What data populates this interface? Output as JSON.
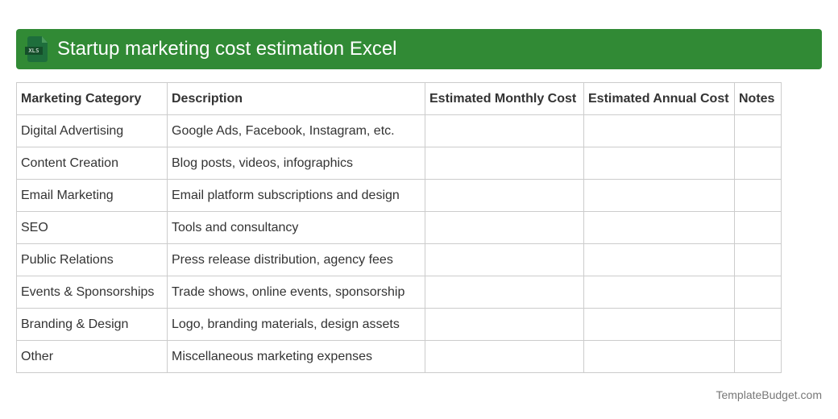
{
  "header": {
    "icon": "xls-file-icon",
    "icon_label": "XLS",
    "title": "Startup marketing cost estimation Excel",
    "color": "#318a35"
  },
  "table": {
    "columns": [
      "Marketing Category",
      "Description",
      "Estimated Monthly Cost",
      "Estimated Annual Cost",
      "Notes"
    ],
    "rows": [
      {
        "category": "Digital Advertising",
        "description": "Google Ads, Facebook, Instagram, etc.",
        "monthly": "",
        "annual": "",
        "notes": ""
      },
      {
        "category": "Content Creation",
        "description": "Blog posts, videos, infographics",
        "monthly": "",
        "annual": "",
        "notes": ""
      },
      {
        "category": "Email Marketing",
        "description": "Email platform subscriptions and design",
        "monthly": "",
        "annual": "",
        "notes": ""
      },
      {
        "category": "SEO",
        "description": "Tools and consultancy",
        "monthly": "",
        "annual": "",
        "notes": ""
      },
      {
        "category": "Public Relations",
        "description": "Press release distribution, agency fees",
        "monthly": "",
        "annual": "",
        "notes": ""
      },
      {
        "category": "Events & Sponsorships",
        "description": "Trade shows, online events, sponsorship",
        "monthly": "",
        "annual": "",
        "notes": ""
      },
      {
        "category": "Branding & Design",
        "description": "Logo, branding materials, design assets",
        "monthly": "",
        "annual": "",
        "notes": ""
      },
      {
        "category": "Other",
        "description": "Miscellaneous marketing expenses",
        "monthly": "",
        "annual": "",
        "notes": ""
      }
    ]
  },
  "footer": {
    "brand": "TemplateBudget.com"
  }
}
